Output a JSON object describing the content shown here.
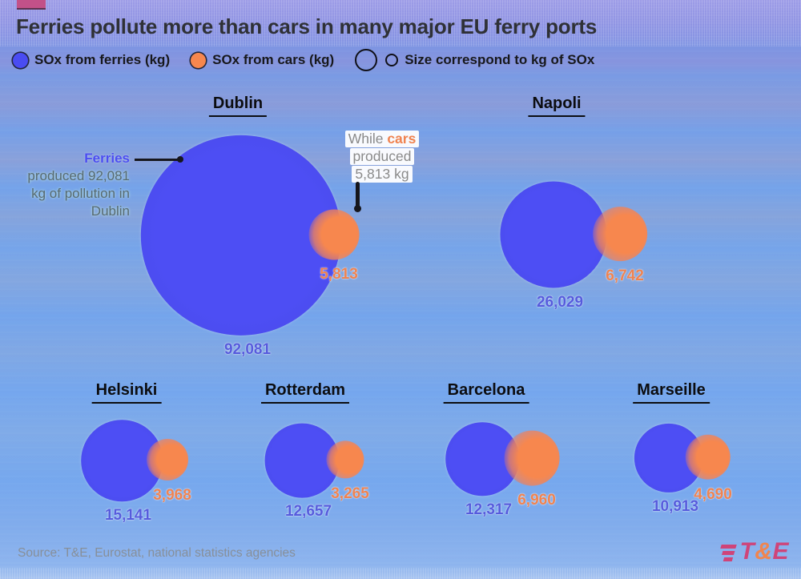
{
  "header": {
    "title": "Ferries pollute more than cars in many major EU ferry ports"
  },
  "legend": {
    "ferries": "SOx from ferries (kg)",
    "cars": "SOx from cars (kg)",
    "size": "Size correspond to kg of SOx"
  },
  "annotations": {
    "ferry_note": {
      "highlight": "Ferries",
      "line2": "produced 92,081",
      "line3": "kg of pollution in",
      "line4": "Dublin"
    },
    "car_note": {
      "lead": "While ",
      "highlight": "cars",
      "line2": "produced",
      "line3": "5,813 kg"
    }
  },
  "footer": {
    "source": "Source: T&E, Eurostat, national statistics agencies",
    "logo": {
      "t": "T",
      "amp": "&",
      "e": "E"
    }
  },
  "colors": {
    "ferry_bubble": "#4a4cf2",
    "car_bubble": "#f7874e",
    "ferry_value_label": "#565bdd",
    "car_value_label": "#ef8351",
    "brand_magenta": "#cf4479",
    "brand_orange": "#f0854f",
    "background_blue": "#7aa3e8"
  },
  "chart_data": {
    "type": "scatter",
    "subtype": "bubble",
    "title": "Ferries pollute more than cars in many major EU ferry ports",
    "size_encoding": "circle area corresponds to kg of SOx",
    "series_names": [
      "SOx from ferries (kg)",
      "SOx from cars (kg)"
    ],
    "unit": "kg of SOx",
    "cities": [
      {
        "name": "Dublin",
        "ferry_kg": 92081,
        "car_kg": 5813,
        "ferry_label": "92,081",
        "car_label": "5,813"
      },
      {
        "name": "Napoli",
        "ferry_kg": 26029,
        "car_kg": 6742,
        "ferry_label": "26,029",
        "car_label": "6,742"
      },
      {
        "name": "Helsinki",
        "ferry_kg": 15141,
        "car_kg": 3968,
        "ferry_label": "15,141",
        "car_label": "3,968"
      },
      {
        "name": "Rotterdam",
        "ferry_kg": 12657,
        "car_kg": 3265,
        "ferry_label": "12,657",
        "car_label": "3,265"
      },
      {
        "name": "Barcelona",
        "ferry_kg": 12317,
        "car_kg": 6960,
        "ferry_label": "12,317",
        "car_label": "6,960"
      },
      {
        "name": "Marseille",
        "ferry_kg": 10913,
        "car_kg": 4690,
        "ferry_label": "10,913",
        "car_label": "4,690"
      }
    ]
  }
}
